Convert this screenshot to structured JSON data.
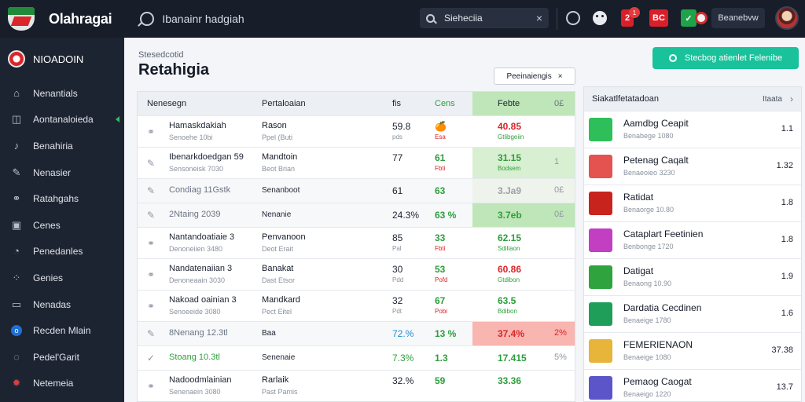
{
  "app": {
    "title": "Olahragai",
    "subtitle": "Ibanainr hadgiah"
  },
  "search": {
    "value": "Sieheciia",
    "clear": "×"
  },
  "topbar": {
    "badge_count": "1",
    "red_button_1": "2",
    "red_button_2": "BC",
    "green_button": "✓",
    "user_name": "Beanebvw"
  },
  "sidebar": {
    "header": "NIOADOIN",
    "items": [
      {
        "label": "Nenantials",
        "icon": "house-icon"
      },
      {
        "label": "Aontanaloieda",
        "icon": "chart-icon",
        "active": true
      },
      {
        "label": "Benahiria",
        "icon": "music-icon"
      },
      {
        "label": "Nenasier",
        "icon": "pencil-icon"
      },
      {
        "label": "Ratahgahs",
        "icon": "link-icon"
      },
      {
        "label": "Cenes",
        "icon": "monitor-icon"
      },
      {
        "label": "Penedanles",
        "icon": "gauge-icon"
      },
      {
        "label": "Genies",
        "icon": "grid-icon"
      },
      {
        "label": "Nenadas",
        "icon": "folder-icon"
      },
      {
        "label": "Recden Mlain",
        "icon": "circle-info-icon"
      },
      {
        "label": "Pedel'Garit",
        "icon": "chat-icon"
      },
      {
        "label": "Netemeia",
        "icon": "gear-icon"
      }
    ]
  },
  "page": {
    "breadcrumb": "Stesedcotid",
    "title": "Retahigia",
    "filter_chip": "Peeinaiengis",
    "filter_chip_close": "×",
    "cta": "Stecbog atienlet Felenibe"
  },
  "table": {
    "headers": {
      "name": "Nenesegn",
      "opponent": "Pertaloaian",
      "n": "fis",
      "goals": "Cens",
      "value": "Febte",
      "pct": "0£"
    },
    "rows": [
      {
        "kind": "h2",
        "dim": false,
        "icon": "link-icon",
        "name": "Hamaskdakiah",
        "sub": "Senoehe 10bi",
        "opp": "Rason",
        "opp_sub": "Ppel (Buti",
        "n": "59.8",
        "n_sub": "pds",
        "g": "🍊",
        "g_sub": "Esa",
        "v": "40.85",
        "v_sub": "Gtlibgeiin",
        "v_color": "#d8262b",
        "pct": "",
        "bg": ""
      },
      {
        "kind": "h2",
        "dim": false,
        "icon": "pencil-icon",
        "name": "Ibenarkdoedgan 59",
        "sub": "Sensoneisk 7030",
        "opp": "Mandtoin",
        "opp_sub": "Beot Brian",
        "n": "77",
        "n_sub": "",
        "g": "61",
        "g_sub": "Fbti",
        "v": "31.15",
        "v_sub": "Bodsem",
        "v_color": "#2e9e3c",
        "pct": "1",
        "bg": "#d8efd2"
      },
      {
        "kind": "h1",
        "dim": true,
        "icon": "pencil-icon",
        "name": "Condiag 11Gstk",
        "sub": "",
        "opp": "Senanboot",
        "opp_sub": "",
        "n": "61",
        "n_sub": "",
        "g": "63",
        "g_sub": "",
        "v": "3.Ja9",
        "v_sub": "",
        "v_color": "#9aa0ab",
        "pct": "0£",
        "bg": "#eef4ec"
      },
      {
        "kind": "h1",
        "dim": true,
        "icon": "pencil-icon",
        "name": "2Ntaing 2039",
        "sub": "",
        "opp": "Nenanie",
        "opp_sub": "",
        "n": "24.3%",
        "n_sub": "",
        "g": "63 %",
        "g_sub": "",
        "v": "3.7eb",
        "v_sub": "",
        "v_color": "#2e9e3c",
        "pct": "0£",
        "bg": "#bfe6b8"
      },
      {
        "kind": "h2",
        "dim": false,
        "icon": "link-icon",
        "name": "Nantandoatiaie 3",
        "sub": "Denoneiien 3480",
        "opp": "Penvanoon",
        "opp_sub": "Deot Erait",
        "n": "85",
        "n_sub": "Pal",
        "g": "33",
        "g_sub": "Fbti",
        "v": "62.15",
        "v_sub": "Sdiliaon",
        "v_color": "#2e9e3c",
        "pct": "",
        "bg": ""
      },
      {
        "kind": "h2",
        "dim": false,
        "icon": "link-icon",
        "name": "Nandatenaiian 3",
        "sub": "Denoneaain 3030",
        "opp": "Banakat",
        "opp_sub": "Dast Etsor",
        "n": "30",
        "n_sub": "Pdd",
        "g": "53",
        "g_sub": "Pofd",
        "v": "60.86",
        "v_sub": "Gtdibon",
        "v_color": "#d8262b",
        "pct": "",
        "bg": ""
      },
      {
        "kind": "h2",
        "dim": false,
        "icon": "link-icon",
        "name": "Nakoad oainian 3",
        "sub": "Senoeeide 3080",
        "opp": "Mandkard",
        "opp_sub": "Pect Eitel",
        "n": "32",
        "n_sub": "Pdt",
        "g": "67",
        "g_sub": "Pobi",
        "v": "63.5",
        "v_sub": "Bdibon",
        "v_color": "#2e9e3c",
        "pct": "",
        "bg": ""
      },
      {
        "kind": "h1",
        "dim": true,
        "icon": "pencil-icon",
        "name": "8Nenang 12.3tl",
        "sub": "",
        "opp": "Baa",
        "opp_sub": "",
        "n": "72.%",
        "n_sub": "",
        "g": "13 %",
        "g_sub": "",
        "v": "37.4%",
        "v_sub": "",
        "v_color": "#d8262b",
        "pct": "2%",
        "bg": "#f9b5b0"
      },
      {
        "kind": "h1",
        "dim": false,
        "icon": "check-icon",
        "name": "Stoang 10.3tl",
        "sub": "",
        "opp": "Senenaie",
        "opp_sub": "",
        "n": "7.3%",
        "n_sub": "",
        "g": "1.3",
        "g_sub": "",
        "v": "17.415",
        "v_sub": "",
        "v_color": "#2e9e3c",
        "pct": "5%",
        "bg": ""
      },
      {
        "kind": "h2",
        "dim": false,
        "icon": "link-icon",
        "name": "Nadoodmlainian",
        "sub": "Senenaein 3080",
        "opp": "Rarlaik",
        "opp_sub": "Past Pamis",
        "n": "32.%",
        "n_sub": "",
        "g": "59",
        "g_sub": "",
        "v": "33.36",
        "v_sub": "",
        "v_color": "#2e9e3c",
        "pct": "",
        "bg": ""
      }
    ]
  },
  "side_list": {
    "title": "Siakatlfetatadoan",
    "more": "Itaata",
    "items": [
      {
        "name": "Aamdbg Ceapit",
        "sub": "Benabege 1080",
        "score": "1.1",
        "color": "#2fbf5a"
      },
      {
        "name": "Petenag Caqalt",
        "sub": "Benaeoieo 3230",
        "score": "1.32",
        "color": "#e4534f"
      },
      {
        "name": "Ratidat",
        "sub": "Benaorge 10.80",
        "score": "1.8",
        "color": "#c9231e"
      },
      {
        "name": "Cataplart Feetinien",
        "sub": "Benbonge 1720",
        "score": "1.8",
        "color": "#c23fc2"
      },
      {
        "name": "Datigat",
        "sub": "Benaong 10.90",
        "score": "1.9",
        "color": "#2fa43e"
      },
      {
        "name": "Dardatia Cecdinen",
        "sub": "Benaeige 1780",
        "score": "1.6",
        "color": "#1f9e5a"
      },
      {
        "name": "FEMERIENAON",
        "sub": "Benaeige 1080",
        "score": "37.38",
        "color": "#e6b53a"
      },
      {
        "name": "Pemaog Caogat",
        "sub": "Benaeigo 1220",
        "score": "13.7",
        "color": "#5c55c9"
      }
    ]
  }
}
